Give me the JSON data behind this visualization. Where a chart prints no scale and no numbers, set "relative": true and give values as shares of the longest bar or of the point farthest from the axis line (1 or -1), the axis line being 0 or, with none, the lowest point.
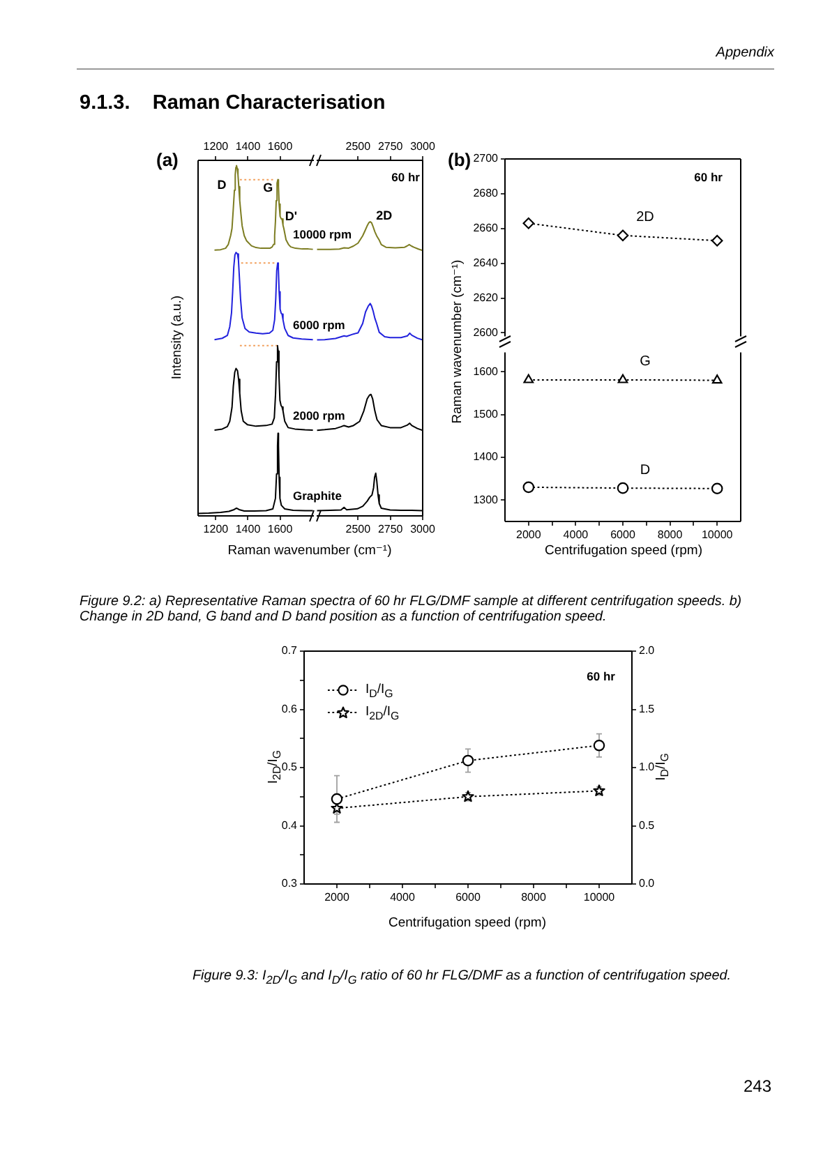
{
  "chart_data": [
    {
      "type": "line",
      "title": "(a)",
      "xlabel": "Raman wavenumber (cm⁻¹)",
      "ylabel": "Intensity (a.u.)",
      "relative": true,
      "xlim": [
        1090,
        1810
      ],
      "xticks": [
        1200,
        1400,
        1600
      ],
      "x2lim": [
        1090,
        1810
      ],
      "x2ticks": [
        1200,
        1400,
        1600
      ],
      "annotations": [
        "Appendix",
        "9.1.3.    Raman Characterisation",
        {
          "text": "D",
          "x": 1329,
          "y": 1
        },
        {
          "text": "G",
          "x": 1586,
          "y": 0.96
        },
        {
          "text": "D'",
          "x": 1612,
          "y": 0.848
        }
      ],
      "series": [
        {
          "name": "10000 rpm",
          "color": "#7d7d22",
          "x": [
            1192,
            1230,
            1261,
            1278,
            1293,
            1301,
            1308,
            1316,
            1321,
            1325,
            1329,
            1334,
            1338,
            1343,
            1349,
            1357,
            1364,
            1377,
            1392,
            1422,
            1450,
            1480,
            1508,
            1537,
            1551,
            1559,
            1566,
            1571,
            1576,
            1581,
            1586,
            1590,
            1594,
            1600,
            1607,
            1612,
            1618,
            1623,
            1637,
            1652,
            1666,
            1695,
            1738,
            1776,
            1804
          ],
          "values": [
            0.759,
            0.76,
            0.764,
            0.775,
            0.801,
            0.821,
            0.87,
            0.93,
            0.974,
            0.995,
            1,
            0.99,
            0.974,
            0.94,
            0.9,
            0.86,
            0.828,
            0.8,
            0.785,
            0.771,
            0.766,
            0.764,
            0.764,
            0.764,
            0.768,
            0.775,
            0.8,
            0.84,
            0.9,
            0.95,
            0.96,
            0.94,
            0.89,
            0.855,
            0.848,
            0.848,
            0.83,
            0.821,
            0.788,
            0.775,
            0.768,
            0.764,
            0.762,
            0.762,
            0.761
          ]
        },
        {
          "name": "6000 rpm",
          "color": "#2222dd",
          "x": [
            1192,
            1240,
            1272,
            1287,
            1298,
            1305,
            1312,
            1319,
            1326,
            1335,
            1341,
            1347,
            1354,
            1364,
            1382,
            1408,
            1450,
            1492,
            1534,
            1555,
            1566,
            1573,
            1579,
            1585,
            1589,
            1594,
            1600,
            1607,
            1612,
            1618,
            1629,
            1650,
            1681,
            1734,
            1804
          ],
          "values": [
            0.503,
            0.507,
            0.515,
            0.54,
            0.58,
            0.64,
            0.71,
            0.745,
            0.752,
            0.748,
            0.73,
            0.68,
            0.62,
            0.565,
            0.535,
            0.525,
            0.522,
            0.52,
            0.522,
            0.53,
            0.56,
            0.62,
            0.7,
            0.722,
            0.71,
            0.64,
            0.59,
            0.578,
            0.576,
            0.56,
            0.535,
            0.515,
            0.508,
            0.505,
            0.503
          ]
        },
        {
          "name": "2000 rpm",
          "color": "#000000",
          "x": [
            1192,
            1240,
            1272,
            1287,
            1301,
            1309,
            1318,
            1326,
            1335,
            1342,
            1349,
            1358,
            1371,
            1398,
            1450,
            1513,
            1550,
            1564,
            1572,
            1578,
            1584,
            1588,
            1593,
            1599,
            1606,
            1612,
            1618,
            1629,
            1650,
            1692,
            1755,
            1804
          ],
          "values": [
            0.245,
            0.248,
            0.255,
            0.27,
            0.31,
            0.37,
            0.41,
            0.421,
            0.415,
            0.39,
            0.35,
            0.3,
            0.27,
            0.26,
            0.256,
            0.258,
            0.262,
            0.28,
            0.35,
            0.44,
            0.486,
            0.47,
            0.4,
            0.33,
            0.315,
            0.311,
            0.3,
            0.27,
            0.252,
            0.248,
            0.246,
            0.245
          ]
        },
        {
          "name": "Graphite",
          "color": "#000000",
          "x": [
            1093,
            1156,
            1230,
            1282,
            1314,
            1329,
            1345,
            1377,
            1440,
            1513,
            1555,
            1571,
            1578,
            1584,
            1587,
            1590,
            1594,
            1599,
            1608,
            1629,
            1681,
            1755,
            1804
          ],
          "values": [
            0.007,
            0.008,
            0.01,
            0.013,
            0.018,
            0.022,
            0.018,
            0.014,
            0.014,
            0.015,
            0.02,
            0.05,
            0.12,
            0.2,
            0.236,
            0.2,
            0.11,
            0.05,
            0.03,
            0.02,
            0.016,
            0.015,
            0.015
          ]
        },
        {
          "color": "#f2a05c",
          "line_style": "dotted",
          "x": [
            1350,
            1571
          ],
          "values": [
            0.96,
            0.96
          ]
        },
        {
          "color": "#f2a05c",
          "line_style": "dotted",
          "x": [
            1358,
            1580
          ],
          "values": [
            0.722,
            0.722
          ]
        },
        {
          "color": "#f2a05c",
          "line_style": "dotted",
          "x": [
            1350,
            1580
          ],
          "values": [
            0.486,
            0.486
          ]
        }
      ]
    },
    {
      "type": "line",
      "relative": true,
      "xlim": [
        2180,
        3000
      ],
      "xticks": [
        2500,
        2750,
        3000
      ],
      "x2lim": [
        2180,
        3000
      ],
      "x2ticks": [
        2500,
        2750,
        3000
      ],
      "annotations": [
        {
          "text": "2D",
          "x": 2594,
          "y": 1
        },
        "60 hr"
      ],
      "series": [
        {
          "color": "#7d7d22",
          "x": [
            2183,
            2284,
            2356,
            2392,
            2428,
            2464,
            2500,
            2536,
            2554,
            2572,
            2583,
            2594,
            2605,
            2615,
            2630,
            2644,
            2662,
            2680,
            2716,
            2788,
            2860,
            2878,
            2896,
            2914,
            2932,
            2967,
            3000
          ],
          "values": [
            0.906,
            0.906,
            0.907,
            0.911,
            0.91,
            0.917,
            0.927,
            0.952,
            0.969,
            0.987,
            0.996,
            1,
            0.996,
            0.985,
            0.966,
            0.952,
            0.939,
            0.922,
            0.913,
            0.911,
            0.913,
            0.917,
            0.922,
            0.917,
            0.913,
            0.907,
            0.902
          ]
        },
        {
          "color": "#2222dd",
          "x": [
            2183,
            2242,
            2326,
            2392,
            2411,
            2464,
            2500,
            2536,
            2558,
            2579,
            2594,
            2605,
            2617,
            2630,
            2644,
            2664,
            2706,
            2748,
            2832,
            2883,
            2900,
            2916,
            2959,
            3000
          ],
          "values": [
            0.598,
            0.599,
            0.603,
            0.612,
            0.61,
            0.618,
            0.622,
            0.654,
            0.693,
            0.713,
            0.722,
            0.713,
            0.696,
            0.672,
            0.654,
            0.624,
            0.609,
            0.606,
            0.606,
            0.612,
            0.621,
            0.614,
            0.604,
            0.598
          ]
        },
        {
          "color": "#000000",
          "x": [
            2183,
            2242,
            2326,
            2368,
            2392,
            2427,
            2464,
            2512,
            2545,
            2571,
            2588,
            2600,
            2613,
            2630,
            2647,
            2680,
            2748,
            2832,
            2883,
            2900,
            2916,
            2959,
            3000
          ],
          "values": [
            0.291,
            0.293,
            0.297,
            0.303,
            0.307,
            0.302,
            0.307,
            0.321,
            0.357,
            0.398,
            0.41,
            0.413,
            0.398,
            0.357,
            0.327,
            0.307,
            0.3,
            0.3,
            0.309,
            0.315,
            0.307,
            0.297,
            0.291
          ]
        },
        {
          "color": "#000000",
          "x": [
            2183,
            2284,
            2368,
            2392,
            2411,
            2495,
            2537,
            2571,
            2590,
            2608,
            2620,
            2628,
            2637,
            2645,
            2655,
            2664,
            2680,
            2748,
            2832,
            2916,
            3000
          ],
          "values": [
            0.018,
            0.019,
            0.02,
            0.029,
            0.021,
            0.024,
            0.033,
            0.05,
            0.063,
            0.071,
            0.095,
            0.131,
            0.145,
            0.119,
            0.071,
            0.042,
            0.026,
            0.02,
            0.019,
            0.019,
            0.018
          ]
        }
      ]
    },
    {
      "type": "line",
      "title": "(b)",
      "ylabel": "Raman wavenumber (cm⁻¹)",
      "tick_labels": "y",
      "x": [
        2000,
        6000,
        10000
      ],
      "xlim": [
        1000,
        11000
      ],
      "ylim": [
        2598,
        2700
      ],
      "yticks": [
        2600,
        2620,
        2640,
        2660,
        2680,
        2700
      ],
      "line_style": "dotted",
      "annotations": [
        "60 hr"
      ],
      "series": [
        {
          "name": "2D",
          "color": "#000000",
          "marker": "diamond",
          "values": [
            2663,
            2656,
            2653
          ]
        }
      ]
    },
    {
      "type": "line",
      "xlabel": "Centrifugation speed (rpm)",
      "x": [
        2000,
        6000,
        10000
      ],
      "xlim": [
        1000,
        11000
      ],
      "xticks": [
        2000,
        {
          "value": 3000,
          "label": null
        },
        4000,
        {
          "value": 5000,
          "label": null
        },
        6000,
        {
          "value": 7000,
          "label": null
        },
        8000,
        {
          "value": 9000,
          "label": null
        },
        10000
      ],
      "ylim": [
        1250,
        1645
      ],
      "yticks": [
        1300,
        1400,
        1500,
        1600
      ],
      "line_style": "dotted",
      "annotations": [
        "Figure 9.2: a) Representative Raman spectra of 60 hr FLG/DMF sample at different centrifugation speeds. b) Change in 2D band, G band and D band position as a function of centrifugation speed."
      ],
      "series": [
        {
          "name": "G",
          "color": "#000000",
          "marker": "triangle",
          "values": [
            1581,
            1581,
            1580
          ]
        },
        {
          "name": "D",
          "color": "#000000",
          "marker": "circle",
          "values": [
            1330,
            1328,
            1327
          ]
        }
      ]
    },
    {
      "type": "line",
      "xlabel": "Centrifugation speed (rpm)",
      "ylabel": "I$_{2D}$/I$_{G}$",
      "y2label": "I$_{D}$/I$_{G}$",
      "x": [
        2000,
        6000,
        10000
      ],
      "xlim": [
        1000,
        11000
      ],
      "xticks": [
        2000,
        {
          "value": 3000,
          "label": null
        },
        4000,
        {
          "value": 5000,
          "label": null
        },
        6000,
        {
          "value": 7000,
          "label": null
        },
        8000,
        {
          "value": 9000,
          "label": null
        },
        10000
      ],
      "ylim": [
        0.3,
        0.7
      ],
      "yticks": [
        0.3,
        {
          "value": 0.35,
          "label": null
        },
        0.4,
        {
          "value": 0.45,
          "label": null
        },
        0.5,
        {
          "value": 0.55,
          "label": null
        },
        0.6,
        {
          "value": 0.65,
          "label": null
        },
        0.7
      ],
      "y2lim": [
        0,
        2
      ],
      "y2ticks": [
        {
          "value": 0,
          "label": "0.0"
        },
        0.5,
        {
          "value": 1,
          "label": "1.0"
        },
        1.5,
        {
          "value": 2,
          "label": "2.0"
        }
      ],
      "line_style": "dotted",
      "legend": "top left",
      "annotations": [
        "60 hr",
        "Figure 9.3: I$_{2D}$/I$_{G}$ and I$_{D}$/I$_{G}$ ratio of 60 hr FLG/DMF as a function of centrifugation speed.",
        "243"
      ],
      "series": [
        {
          "name": "I$_{D}$/I$_{G}$",
          "color": "#000000",
          "marker": "circle",
          "axis": "y2",
          "values": [
            0.73,
            1.06,
            1.19
          ],
          "errors": [
            0.2,
            0.1,
            0.1
          ]
        },
        {
          "name": "I$_{2D}$/I$_{G}$",
          "color": "#000000",
          "marker": "star",
          "values": [
            0.43,
            0.45,
            0.46
          ],
          "errors": [
            0.01,
            0.007,
            0.007
          ]
        }
      ]
    }
  ]
}
